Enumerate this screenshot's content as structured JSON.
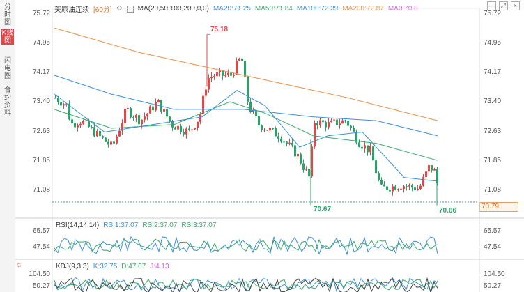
{
  "sidebar": {
    "tabs": [
      {
        "label": "分时图",
        "active": false
      },
      {
        "label": "K线图",
        "active": true
      },
      {
        "label": "闪电图",
        "active": false
      },
      {
        "label": "合约资料",
        "active": false
      }
    ]
  },
  "header": {
    "symbol": "美原油连续",
    "period": "[60分]",
    "ma_settings": "MA(20,50,100,200,0,0)",
    "ma20": "MA20:71.25",
    "ma50": "MA50:71.84",
    "ma100": "MA100:72.39",
    "ma200": "MA200:72.87",
    "ma0": "MA0:70.8"
  },
  "toolbar": {
    "btn1": "—",
    "btn2": "⤢",
    "btn3": "×"
  },
  "price_axis": {
    "ticks": [
      "75.72",
      "74.95",
      "74.17",
      "73.40",
      "72.63",
      "71.85",
      "71.08"
    ],
    "current_price": "70.79"
  },
  "annotations": {
    "high": "75.18",
    "low1": "70.67",
    "low2": "70.66"
  },
  "rsi": {
    "title": "RSI(14,14,14)",
    "rsi1": "RSI1:37.07",
    "rsi2": "RSI2:37.07",
    "rsi3": "RSI3:37.07",
    "ticks": [
      "65.57",
      "47.54"
    ]
  },
  "kdj": {
    "title": "KDJ(9,3,3)",
    "k": "K:32.75",
    "d": "D:47.07",
    "j": "J:4.13",
    "ticks": [
      "104.50",
      "50.27"
    ]
  },
  "colors": {
    "up": "#e04848",
    "down": "#2aa36a",
    "ma20": "#3b8fd9",
    "ma50": "#3aa86b",
    "ma100": "#3b8fd9",
    "ma200": "#e8904a",
    "ma0": "#d65fd6"
  },
  "chart_data": {
    "type": "candlestick",
    "title": "美原油连续 [60分]",
    "ylim": [
      70.5,
      75.72
    ],
    "annotations": {
      "high": 75.18,
      "low1": 70.67,
      "low2": 70.66
    },
    "current_price": 70.79
  }
}
